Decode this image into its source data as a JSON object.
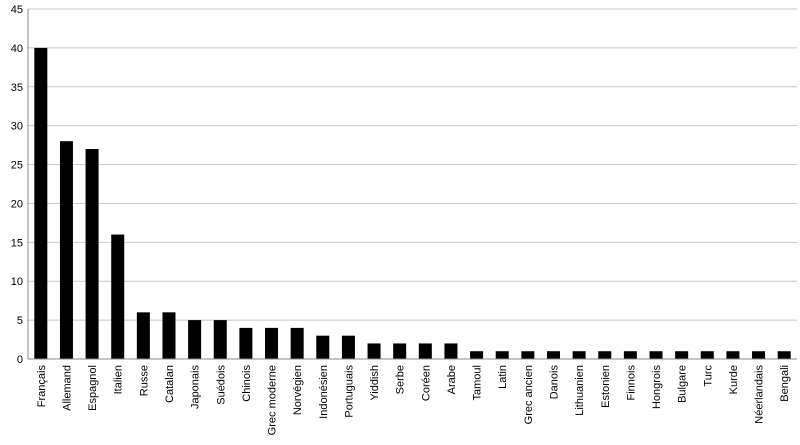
{
  "chart_data": {
    "type": "bar",
    "categories": [
      "Français",
      "Allemand",
      "Espagnol",
      "Italien",
      "Russe",
      "Catalan",
      "Japonais",
      "Suédois",
      "Chinois",
      "Grec moderne",
      "Norvégien",
      "Indonésien",
      "Portuguais",
      "Yiddish",
      "Serbe",
      "Coréen",
      "Arabe",
      "Tamoul",
      "Latin",
      "Grec ancien",
      "Danois",
      "Lithuanien",
      "Estonien",
      "Finnois",
      "Hongrois",
      "Bulgare",
      "Turc",
      "Kurde",
      "Néerlandais",
      "Bengali"
    ],
    "values": [
      40,
      28,
      27,
      16,
      6,
      6,
      5,
      5,
      4,
      4,
      4,
      3,
      3,
      2,
      2,
      2,
      2,
      1,
      1,
      1,
      1,
      1,
      1,
      1,
      1,
      1,
      1,
      1,
      1,
      1
    ],
    "ylim": [
      0,
      45
    ],
    "yticks": [
      0,
      5,
      10,
      15,
      20,
      25,
      30,
      35,
      40,
      45
    ],
    "grid": true,
    "legend": "none",
    "bar_color": "#000000",
    "grid_color": "#c8c8c8"
  }
}
